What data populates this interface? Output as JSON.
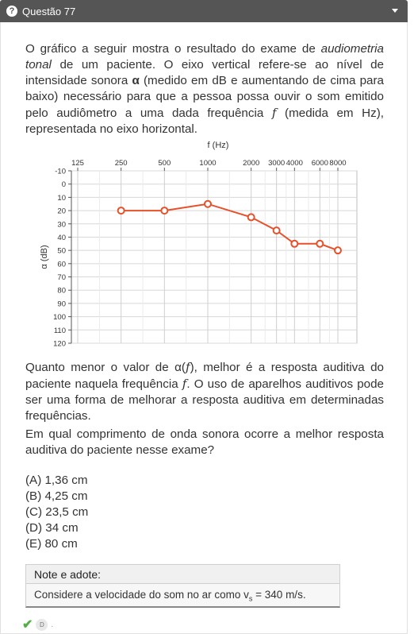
{
  "header": {
    "title": "Questão 77",
    "icon": "question-circle-icon",
    "dropdown_icon": "caret-down-icon"
  },
  "question": {
    "intro": {
      "p1": "O gráfico a seguir mostra o resultado do exame de ",
      "p1_italic": "audiometria tonal",
      "p2": " de um paciente. O eixo vertical refere-se ao nível de intensidade sonora ",
      "alpha": "α",
      "p3": " (medido em dB e aumentando de cima para baixo) necessário para que a pessoa possa ouvir o som emitido pelo audiômetro a uma dada frequência ",
      "f": "f",
      "p4": " (medida em Hz), representada no eixo horizontal."
    },
    "after": {
      "p1": "Quanto menor o valor de α(",
      "f": "f",
      "p2": "), melhor é a resposta auditiva do paciente naquela frequência ",
      "p3": ". O uso de aparelhos auditivos pode ser uma forma de melhorar a resposta auditiva em determinadas frequências."
    },
    "prompt": "Em qual comprimento de onda sonora ocorre a melhor resposta auditiva do paciente nesse exame?"
  },
  "chart_data": {
    "type": "line",
    "x_axis_title": "f (Hz)",
    "y_axis_title": "α (dB)",
    "x_scale": "log",
    "x_tick_labels": [
      "125",
      "250",
      "500",
      "1000",
      "2000",
      "3000",
      "4000",
      "6000",
      "8000"
    ],
    "x_ticks": [
      125,
      250,
      500,
      1000,
      2000,
      3000,
      4000,
      6000,
      8000
    ],
    "y_ticks": [
      -10,
      0,
      10,
      20,
      30,
      40,
      50,
      60,
      70,
      80,
      90,
      100,
      110,
      120
    ],
    "y_tick_labels": [
      "-10",
      "0",
      "10",
      "20",
      "30",
      "40",
      "50",
      "60",
      "70",
      "80",
      "90",
      "100",
      "110",
      "120"
    ],
    "y_inverted": true,
    "ylim": [
      -10,
      120
    ],
    "grid": true,
    "series_color": "#e8502a",
    "x": [
      250,
      500,
      1000,
      2000,
      3000,
      4000,
      6000,
      8000
    ],
    "y": [
      20,
      20,
      15,
      25,
      35,
      45,
      45,
      50
    ]
  },
  "options": [
    "(A) 1,36 cm",
    "(B) 4,25 cm",
    "(C) 23,5 cm",
    "(D) 34 cm",
    "(E) 80 cm"
  ],
  "note": {
    "title": "Note e adote:",
    "body_prefix": "Considere a velocidade do som no ar como v",
    "subscript": "s",
    "body_suffix": " = 340 m/s."
  },
  "footer": {
    "check_icon": "check-icon",
    "answer_badge": "D",
    "dot": "."
  },
  "colors": {
    "header_bg": "#555555",
    "accent": "#e8502a",
    "check": "#52b043"
  }
}
